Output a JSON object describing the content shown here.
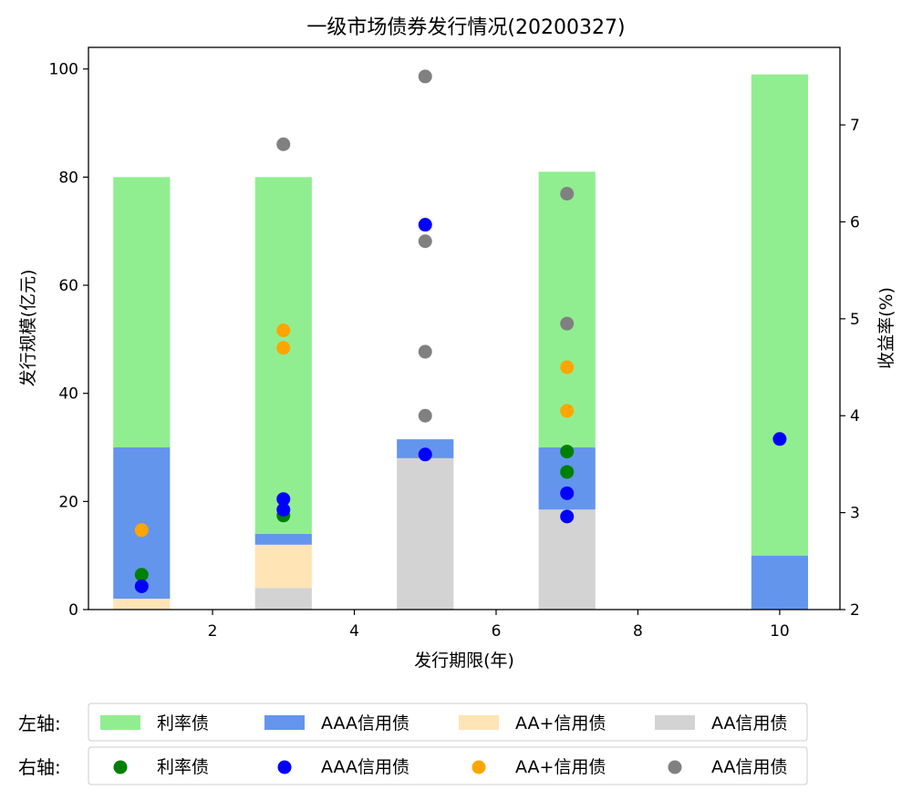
{
  "chart_data": {
    "type": "bar",
    "title": "一级市场债券发行情况(20200327)",
    "xlabel": "发行期限(年)",
    "ylabel_left": "发行规模(亿元)",
    "ylabel_right": "收益率(%)",
    "xlim": [
      0.25,
      10.85
    ],
    "ylim_left": [
      0,
      104
    ],
    "ylim_right": [
      2,
      7.8
    ],
    "xticks": [
      2,
      4,
      6,
      8,
      10
    ],
    "yticks_left": [
      0,
      20,
      40,
      60,
      80,
      100
    ],
    "yticks_right": [
      2,
      3,
      4,
      5,
      6,
      7
    ],
    "categories": [
      1,
      3,
      5,
      7,
      10
    ],
    "stack_order": [
      "AA信用债",
      "AA+信用债",
      "AAA信用债",
      "利率债"
    ],
    "bar_series": [
      {
        "name": "利率债",
        "color": "#90EE90",
        "values": [
          50,
          66,
          0,
          51,
          89
        ]
      },
      {
        "name": "AAA信用债",
        "color": "#6495ED",
        "values": [
          28,
          2,
          3.5,
          11.5,
          10
        ]
      },
      {
        "name": "AA+信用债",
        "color": "#FFE4B5",
        "values": [
          2,
          8,
          0,
          0,
          0
        ]
      },
      {
        "name": "AA信用债",
        "color": "#D3D3D3",
        "values": [
          0,
          4,
          28,
          18.5,
          0
        ]
      }
    ],
    "scatter_series": [
      {
        "name": "利率债",
        "color": "#008000",
        "points": [
          [
            1,
            2.36
          ],
          [
            3,
            2.97
          ],
          [
            7,
            3.42
          ],
          [
            7,
            3.63
          ]
        ]
      },
      {
        "name": "AAA信用债",
        "color": "#0000FF",
        "points": [
          [
            1,
            2.24
          ],
          [
            3,
            3.03
          ],
          [
            3,
            3.14
          ],
          [
            5,
            3.6
          ],
          [
            5,
            5.97
          ],
          [
            7,
            2.96
          ],
          [
            7,
            3.2
          ],
          [
            10,
            3.76
          ]
        ]
      },
      {
        "name": "AA+信用债",
        "color": "#FFA500",
        "points": [
          [
            1,
            2.82
          ],
          [
            3,
            4.7
          ],
          [
            3,
            4.88
          ],
          [
            7,
            4.05
          ],
          [
            7,
            4.5
          ]
        ]
      },
      {
        "name": "AA信用债",
        "color": "#808080",
        "points": [
          [
            3,
            6.8
          ],
          [
            5,
            4.0
          ],
          [
            5,
            4.66
          ],
          [
            5,
            5.8
          ],
          [
            5,
            7.5
          ],
          [
            7,
            4.95
          ],
          [
            7,
            6.29
          ]
        ]
      }
    ]
  },
  "legends": {
    "left_label": "左轴:",
    "right_label": "右轴:",
    "left_items": [
      {
        "name": "利率债",
        "color": "#90EE90"
      },
      {
        "name": "AAA信用债",
        "color": "#6495ED"
      },
      {
        "name": "AA+信用债",
        "color": "#FFE4B5"
      },
      {
        "name": "AA信用债",
        "color": "#D3D3D3"
      }
    ],
    "right_items": [
      {
        "name": "利率债",
        "color": "#008000"
      },
      {
        "name": "AAA信用债",
        "color": "#0000FF"
      },
      {
        "name": "AA+信用债",
        "color": "#FFA500"
      },
      {
        "name": "AA信用债",
        "color": "#808080"
      }
    ]
  }
}
